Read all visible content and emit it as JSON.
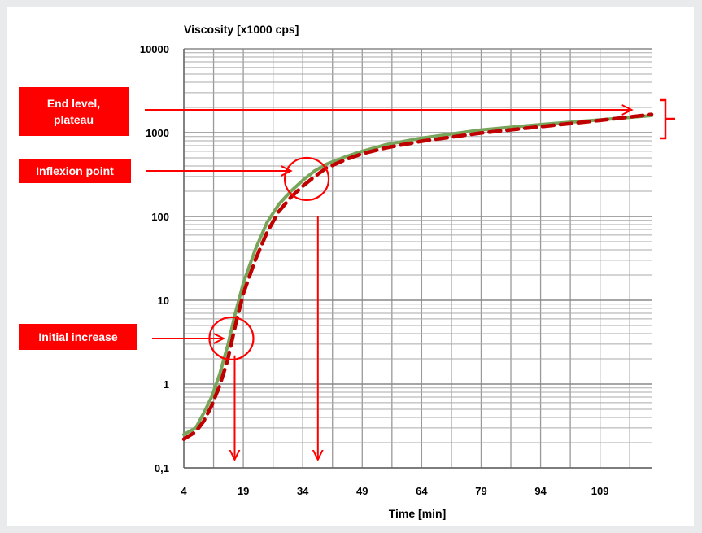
{
  "chart_data": {
    "type": "line",
    "ylabel": "Viscosity [x1000  cps]",
    "xlabel": "Time [min]",
    "x_ticks": [
      4,
      19,
      34,
      49,
      64,
      79,
      94,
      109
    ],
    "y_ticks": [
      "0,1",
      "1",
      "10",
      "100",
      "1000",
      "10000"
    ],
    "y_scale": "log",
    "ylim": [
      0.1,
      10000
    ],
    "xlim": [
      4,
      122
    ],
    "grid": true,
    "series": [
      {
        "style": "solid",
        "color": "#77a55a",
        "x": [
          4,
          7,
          9,
          11,
          13,
          15,
          17,
          19,
          22,
          25,
          28,
          31,
          34,
          37,
          40,
          45,
          49,
          55,
          64,
          79,
          94,
          109,
          122
        ],
        "y": [
          0.25,
          0.3,
          0.45,
          0.7,
          1.3,
          2.8,
          7,
          16,
          40,
          85,
          140,
          200,
          270,
          350,
          420,
          520,
          600,
          720,
          860,
          1080,
          1250,
          1420,
          1600
        ]
      },
      {
        "style": "dashed",
        "color": "#c00000",
        "x": [
          4,
          7,
          9,
          11,
          13,
          15,
          17,
          19,
          22,
          25,
          28,
          31,
          34,
          37,
          40,
          45,
          49,
          55,
          64,
          79,
          94,
          109,
          122
        ],
        "y": [
          0.22,
          0.27,
          0.36,
          0.55,
          0.95,
          1.9,
          5,
          12,
          30,
          65,
          115,
          170,
          230,
          300,
          380,
          480,
          560,
          660,
          790,
          990,
          1180,
          1400,
          1650
        ]
      }
    ],
    "annotations": [
      {
        "id": "end",
        "lines": [
          "End level,",
          "plateau"
        ],
        "target": [
          117,
          1700
        ]
      },
      {
        "id": "inflexion",
        "lines": [
          "Inflexion point"
        ],
        "target": [
          31,
          300
        ]
      },
      {
        "id": "initial",
        "lines": [
          "Initial increase"
        ],
        "target": [
          14,
          2.5
        ]
      }
    ],
    "circles": [
      {
        "x": 35,
        "y": 280
      },
      {
        "x": 16,
        "y": 3.5
      }
    ],
    "down_arrows": [
      {
        "x": 16,
        "from_y": 2.2,
        "to_y": 0.12
      },
      {
        "x": 37,
        "from_y": 100,
        "to_y": 0.12
      }
    ]
  },
  "colors": {
    "annotation": "#ff0000",
    "grid": "#999999"
  }
}
